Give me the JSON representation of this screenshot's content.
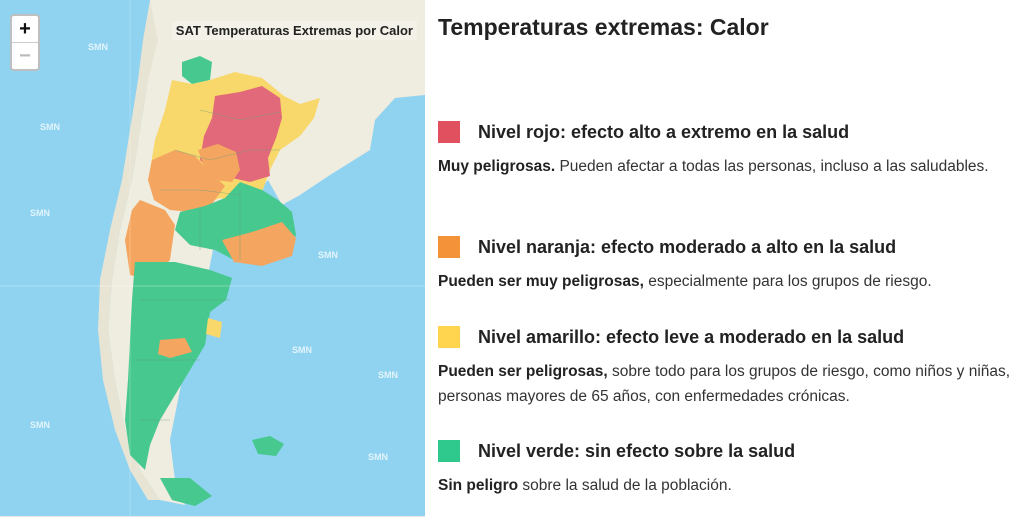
{
  "map": {
    "title": "SAT Temperaturas Extremas por Calor",
    "zoom_in_label": "+",
    "zoom_out_label": "−",
    "watermark": "SMN",
    "colors": {
      "sea": "#8fd3f0",
      "land": "#efece0",
      "red": "#e2697a",
      "orange": "#f4a560",
      "yellow": "#f8d86a",
      "green": "#46c88e"
    }
  },
  "panel": {
    "title": "Temperaturas extremas: Calor",
    "levels": [
      {
        "color": "#e0505e",
        "title": "Nivel rojo: efecto alto a extremo en la salud",
        "bold": "Muy peligrosas.",
        "text": " Pueden afectar a todas las personas, incluso a las saludables."
      },
      {
        "color": "#f4923a",
        "title": "Nivel naranja: efecto moderado a alto en la salud",
        "bold": "Pueden ser muy peligrosas,",
        "text": " especialmente para los grupos de riesgo."
      },
      {
        "color": "#ffd54f",
        "title": "Nivel amarillo: efecto leve a moderado en la salud",
        "bold": "Pueden ser peligrosas,",
        "text": " sobre todo para los grupos de riesgo, como niños y niñas, personas mayores de 65 años, con enfermedades crónicas."
      },
      {
        "color": "#2fc98e",
        "title": "Nivel verde: sin efecto sobre la salud",
        "bold": "Sin peligro",
        "text": " sobre la salud de la población."
      }
    ]
  }
}
